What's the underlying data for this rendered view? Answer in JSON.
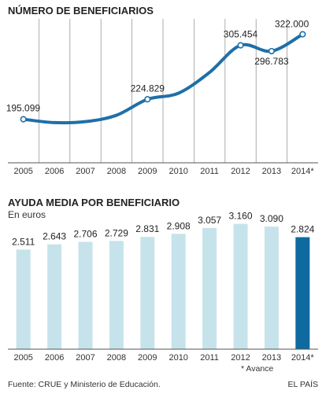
{
  "footer": {
    "source": "Fuente: CRUE y Ministerio de Educación.",
    "brand": "EL PAÍS",
    "note": "* Avance"
  },
  "colors": {
    "line": "#1f6fa8",
    "bar": "#c6e3ec",
    "bar_highlight": "#0f6aa0",
    "grid": "#9a9a9a"
  },
  "chart_data": [
    {
      "type": "line",
      "title": "NÚMERO DE BENEFICIARIOS",
      "subtitle": "",
      "categories": [
        "2005",
        "2006",
        "2007",
        "2008",
        "2009",
        "2010",
        "2011",
        "2012",
        "2013",
        "2014*"
      ],
      "values": [
        195099,
        190000,
        191500,
        201000,
        224829,
        234000,
        265000,
        305454,
        296783,
        322000
      ],
      "labels": [
        "195.099",
        "",
        "",
        "",
        "224.829",
        "",
        "",
        "305.454",
        "296.783",
        "322.000"
      ],
      "ylim": [
        130000,
        345000
      ],
      "grid": "vertical"
    },
    {
      "type": "bar",
      "title": "AYUDA MEDIA POR BENEFICIARIO",
      "subtitle": "En euros",
      "categories": [
        "2005",
        "2006",
        "2007",
        "2008",
        "2009",
        "2010",
        "2011",
        "2012",
        "2013",
        "2014*"
      ],
      "values": [
        2511,
        2643,
        2706,
        2729,
        2831,
        2908,
        3057,
        3160,
        3090,
        2824
      ],
      "labels": [
        "2.511",
        "2.643",
        "2.706",
        "2.729",
        "2.831",
        "2.908",
        "3.057",
        "3.160",
        "3.090",
        "2.824"
      ],
      "highlight_index": 9,
      "ylim": [
        0,
        3450
      ]
    }
  ]
}
